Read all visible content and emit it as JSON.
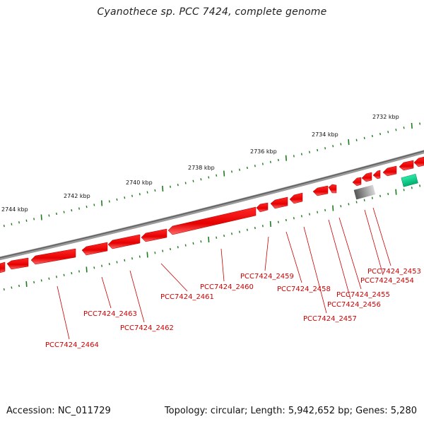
{
  "title": "Cyanothece sp. PCC 7424, complete genome",
  "footer": {
    "accession": "Accession: NC_011729",
    "summary": "Topology: circular; Length: 5,942,652 bp; Genes: 5,280"
  },
  "colors": {
    "gene": "#ff0000",
    "gene_label": "#cc0000",
    "tick": "#1f7a1f",
    "backbone": "#7a7a7a"
  },
  "kbp_labels": [
    "2732 kbp",
    "2734 kbp",
    "2736 kbp",
    "2738 kbp",
    "2740 kbp",
    "2742 kbp",
    "2744 kbp"
  ],
  "genes": [
    {
      "label": "PCC7424_2453"
    },
    {
      "label": "PCC7424_2454"
    },
    {
      "label": "PCC7424_2455"
    },
    {
      "label": "PCC7424_2456"
    },
    {
      "label": "PCC7424_2457"
    },
    {
      "label": "PCC7424_2458"
    },
    {
      "label": "PCC7424_2459"
    },
    {
      "label": "PCC7424_2460"
    },
    {
      "label": "PCC7424_2461"
    },
    {
      "label": "PCC7424_2462"
    },
    {
      "label": "PCC7424_2463"
    },
    {
      "label": "PCC7424_2464"
    }
  ]
}
